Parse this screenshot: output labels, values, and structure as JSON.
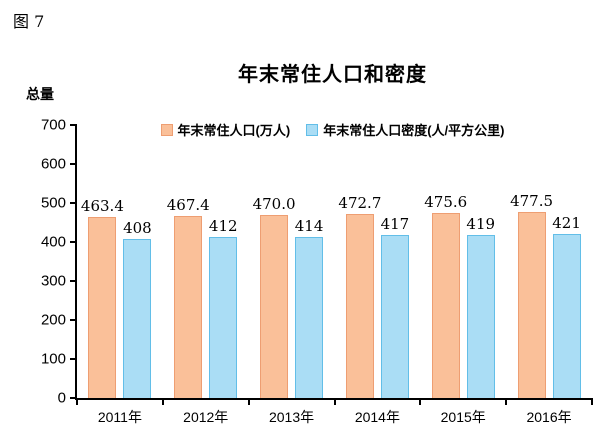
{
  "figure_label": "图 7",
  "chart_data": {
    "type": "bar",
    "title": "年末常住人口和密度",
    "ylabel": "总量",
    "ylim": [
      0,
      700
    ],
    "yticks": [
      0,
      100,
      200,
      300,
      400,
      500,
      600,
      700
    ],
    "grid": false,
    "legend_position": "top-center",
    "categories": [
      "2011年",
      "2012年",
      "2013年",
      "2014年",
      "2015年",
      "2016年"
    ],
    "series": [
      {
        "id": "population",
        "name": "年末常住人口(万人)",
        "color": "#FAC099",
        "border_color": "#EE9E72",
        "values": [
          463.4,
          467.4,
          470.0,
          472.7,
          475.6,
          477.5
        ],
        "labels": [
          "463.4",
          "467.4",
          "470.0",
          "472.7",
          "475.6",
          "477.5"
        ]
      },
      {
        "id": "density",
        "name": "年末常住人口密度(人/平方公里)",
        "color": "#AADDF5",
        "border_color": "#62BEE8",
        "values": [
          408,
          412,
          414,
          417,
          419,
          421
        ],
        "labels": [
          "408",
          "412",
          "414",
          "417",
          "419",
          "421"
        ]
      }
    ],
    "axis_color": "#000000",
    "text_color": "#000000",
    "background": "#FFFFFF"
  }
}
